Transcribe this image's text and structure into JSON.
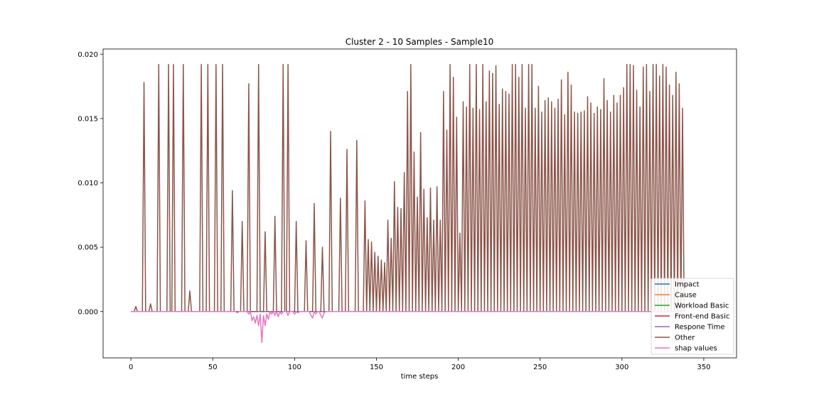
{
  "chart_data": {
    "type": "line",
    "title": "Cluster 2 - 10 Samples - Sample10",
    "xlabel": "time steps",
    "ylabel": "",
    "xlim": [
      -17,
      370
    ],
    "ylim": [
      -0.0036,
      0.0204
    ],
    "x_ticks": [
      0,
      50,
      100,
      150,
      200,
      250,
      300,
      350
    ],
    "y_ticks": [
      0.0,
      0.005,
      0.01,
      0.015,
      0.02
    ],
    "x_tick_labels": [
      "0",
      "50",
      "100",
      "150",
      "200",
      "250",
      "300",
      "350"
    ],
    "y_tick_labels": [
      "0.000",
      "0.005",
      "0.010",
      "0.015",
      "0.020"
    ],
    "grid": false,
    "legend_position": "lower-right",
    "n_points": 339,
    "series": [
      {
        "name": "Impact",
        "color": "#1f77b4",
        "baseline": 0.0,
        "points": []
      },
      {
        "name": "Cause",
        "color": "#ff7f0e",
        "baseline": 0.0,
        "points": []
      },
      {
        "name": "Workload Basic",
        "color": "#2ca02c",
        "baseline": 0.0,
        "points": []
      },
      {
        "name": "Front-end Basic",
        "color": "#d62728",
        "baseline": 0.0,
        "points": []
      },
      {
        "name": "Respone Time",
        "color": "#9467bd",
        "baseline": 0.0,
        "points": []
      },
      {
        "name": "Other",
        "color": "#8c564b",
        "baseline": 0.0,
        "points": [
          [
            3,
            0.0004
          ],
          [
            8,
            0.0178
          ],
          [
            12,
            0.0006
          ],
          [
            17,
            0.0192
          ],
          [
            23,
            0.0192
          ],
          [
            26,
            0.0192
          ],
          [
            32,
            0.0192
          ],
          [
            36,
            0.0016
          ],
          [
            43,
            0.0192
          ],
          [
            47,
            0.0192
          ],
          [
            52,
            0.0192
          ],
          [
            56,
            0.0192
          ],
          [
            62,
            0.0094
          ],
          [
            68,
            0.007
          ],
          [
            72,
            0.0177
          ],
          [
            78,
            0.0192
          ],
          [
            82,
            0.0062
          ],
          [
            88,
            0.0074
          ],
          [
            93,
            0.0192
          ],
          [
            96,
            0.0192
          ],
          [
            101,
            0.007
          ],
          [
            107,
            0.0055
          ],
          [
            112,
            0.0084
          ],
          [
            117,
            0.005
          ],
          [
            122,
            0.014
          ],
          [
            128,
            0.0088
          ],
          [
            132,
            0.0126
          ],
          [
            138,
            0.0133
          ],
          [
            143,
            0.0086
          ],
          [
            145,
            0.0056
          ],
          [
            147,
            0.0054
          ],
          [
            149,
            0.0046
          ],
          [
            151,
            0.0043
          ],
          [
            153,
            0.004
          ],
          [
            155,
            0.0038
          ],
          [
            157,
            0.0071
          ],
          [
            159,
            0.0057
          ],
          [
            161,
            0.0101
          ],
          [
            163,
            0.0081
          ],
          [
            165,
            0.008
          ],
          [
            167,
            0.0108
          ],
          [
            169,
            0.0171
          ],
          [
            171,
            0.0192
          ],
          [
            173,
            0.0124
          ],
          [
            175,
            0.0089
          ],
          [
            177,
            0.0139
          ],
          [
            179,
            0.0095
          ],
          [
            181,
            0.0073
          ],
          [
            183,
            0.0096
          ],
          [
            185,
            0.0071
          ],
          [
            187,
            0.0097
          ],
          [
            189,
            0.0071
          ],
          [
            191,
            0.0171
          ],
          [
            193,
            0.0141
          ],
          [
            195,
            0.0192
          ],
          [
            197,
            0.0182
          ],
          [
            199,
            0.0151
          ],
          [
            201,
            0.0061
          ],
          [
            203,
            0.0163
          ],
          [
            205,
            0.0159
          ],
          [
            207,
            0.0192
          ],
          [
            209,
            0.0158
          ],
          [
            211,
            0.0192
          ],
          [
            213,
            0.0157
          ],
          [
            215,
            0.0192
          ],
          [
            217,
            0.0163
          ],
          [
            219,
            0.0187
          ],
          [
            221,
            0.0185
          ],
          [
            223,
            0.0191
          ],
          [
            225,
            0.0161
          ],
          [
            227,
            0.0173
          ],
          [
            229,
            0.0171
          ],
          [
            231,
            0.0169
          ],
          [
            233,
            0.0192
          ],
          [
            235,
            0.0192
          ],
          [
            237,
            0.0182
          ],
          [
            239,
            0.0192
          ],
          [
            241,
            0.0158
          ],
          [
            243,
            0.0192
          ],
          [
            245,
            0.0192
          ],
          [
            247,
            0.0158
          ],
          [
            249,
            0.0175
          ],
          [
            251,
            0.0155
          ],
          [
            253,
            0.0164
          ],
          [
            255,
            0.0166
          ],
          [
            257,
            0.0163
          ],
          [
            259,
            0.0158
          ],
          [
            261,
            0.0165
          ],
          [
            263,
            0.018
          ],
          [
            265,
            0.0153
          ],
          [
            267,
            0.0186
          ],
          [
            269,
            0.0176
          ],
          [
            271,
            0.0155
          ],
          [
            273,
            0.0154
          ],
          [
            275,
            0.0155
          ],
          [
            277,
            0.0156
          ],
          [
            279,
            0.0167
          ],
          [
            281,
            0.0162
          ],
          [
            283,
            0.0154
          ],
          [
            285,
            0.0159
          ],
          [
            287,
            0.0157
          ],
          [
            289,
            0.0181
          ],
          [
            291,
            0.0164
          ],
          [
            293,
            0.0155
          ],
          [
            295,
            0.0168
          ],
          [
            297,
            0.0162
          ],
          [
            299,
            0.0168
          ],
          [
            301,
            0.0174
          ],
          [
            303,
            0.0192
          ],
          [
            305,
            0.0192
          ],
          [
            307,
            0.0191
          ],
          [
            309,
            0.0172
          ],
          [
            311,
            0.0159
          ],
          [
            313,
            0.019
          ],
          [
            315,
            0.0192
          ],
          [
            317,
            0.0171
          ],
          [
            319,
            0.0192
          ],
          [
            321,
            0.0192
          ],
          [
            323,
            0.0183
          ],
          [
            325,
            0.0192
          ],
          [
            327,
            0.019
          ],
          [
            329,
            0.0176
          ],
          [
            331,
            0.0168
          ],
          [
            333,
            0.0186
          ],
          [
            335,
            0.0177
          ],
          [
            337,
            0.0158
          ]
        ]
      },
      {
        "name": "shap values",
        "color": "#e377c2",
        "baseline": 0.0,
        "points": [
          [
            65,
            -0.0001
          ],
          [
            72,
            -0.0002
          ],
          [
            74,
            -0.0007
          ],
          [
            75,
            -0.0004
          ],
          [
            76,
            -0.0009
          ],
          [
            77,
            -0.0003
          ],
          [
            78,
            -0.0011
          ],
          [
            79,
            -0.0002
          ],
          [
            80,
            -0.0024
          ],
          [
            81,
            -0.0003
          ],
          [
            82,
            -0.0011
          ],
          [
            83,
            -0.0002
          ],
          [
            84,
            -0.0006
          ],
          [
            86,
            -0.0002
          ],
          [
            88,
            -0.0003
          ],
          [
            90,
            -0.0004
          ],
          [
            92,
            -0.0002
          ],
          [
            96,
            -0.0003
          ],
          [
            100,
            -0.0002
          ],
          [
            102,
            -0.0001
          ],
          [
            110,
            -0.0003
          ],
          [
            111,
            -0.0005
          ],
          [
            113,
            -0.0002
          ],
          [
            116,
            -0.0003
          ],
          [
            117,
            -0.0005
          ],
          [
            118,
            -0.0001
          ]
        ]
      }
    ]
  }
}
